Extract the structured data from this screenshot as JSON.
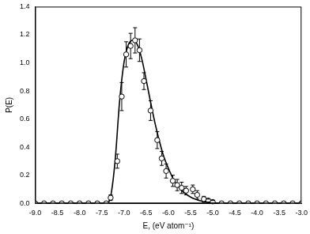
{
  "chart_data": {
    "type": "scatter",
    "x_label": "E, (eV atom⁻¹)",
    "y_label": "P(E)",
    "xlim": [
      -9.0,
      -3.0
    ],
    "xticks": [
      {
        "value": -9,
        "label": "-9.0"
      },
      -8.5,
      {
        "value": -8,
        "label": "-8.0"
      },
      -7.5,
      {
        "value": -7,
        "label": "-7.0"
      },
      -6.5,
      {
        "value": -6,
        "label": "-6.0"
      },
      -5.5,
      {
        "value": -5,
        "label": "-5.0"
      },
      -4.5,
      {
        "value": -4,
        "label": "-4.0"
      },
      -3.5,
      {
        "value": -3,
        "label": "-3.0"
      }
    ],
    "ylim": [
      0,
      1.4
    ],
    "yticks": [
      {
        "value": 0,
        "label": "0.0"
      },
      0.2,
      0.4,
      0.6,
      0.8,
      {
        "value": 1,
        "label": "1.0"
      },
      1.2,
      1.4
    ],
    "grid": false,
    "series": [
      {
        "type": "line",
        "color": "#000000",
        "line_style": "solid",
        "x": [
          -9.0,
          -7.4,
          -7.3,
          -7.2,
          -7.1,
          -7.0,
          -6.9,
          -6.8,
          -6.7,
          -6.6,
          -6.5,
          -6.4,
          -6.3,
          -6.2,
          -6.1,
          -6.0,
          -5.9,
          -5.8,
          -5.7,
          -5.6,
          -5.5,
          -5.4,
          -5.3,
          -5.2,
          -5.0,
          -4.8,
          -3.0
        ],
        "values": [
          0,
          0,
          0.05,
          0.3,
          0.72,
          1.0,
          1.13,
          1.16,
          1.13,
          1.03,
          0.88,
          0.72,
          0.57,
          0.44,
          0.33,
          0.25,
          0.18,
          0.13,
          0.09,
          0.065,
          0.045,
          0.03,
          0.02,
          0.012,
          0.005,
          0,
          0
        ]
      },
      {
        "type": "scatter",
        "color": "#000000",
        "marker": "circle-open",
        "x": [
          -9.0,
          -8.8,
          -8.6,
          -8.4,
          -8.2,
          -8.0,
          -7.8,
          -7.6,
          -7.4,
          -7.3,
          -7.15,
          -7.05,
          -6.95,
          -6.85,
          -6.75,
          -6.65,
          -6.55,
          -6.4,
          -6.25,
          -6.15,
          -6.05,
          -5.9,
          -5.8,
          -5.7,
          -5.6,
          -5.45,
          -5.35,
          -5.2,
          -5.1,
          -5.0,
          -4.8,
          -4.6,
          -4.4,
          -4.2,
          -4.0,
          -3.8,
          -3.6,
          -3.4,
          -3.2,
          -3.0
        ],
        "values": [
          0,
          0,
          0,
          0,
          0,
          0,
          0,
          0,
          0,
          0.04,
          0.3,
          0.76,
          1.06,
          1.12,
          1.16,
          1.09,
          0.87,
          0.66,
          0.45,
          0.32,
          0.23,
          0.16,
          0.13,
          0.11,
          0.09,
          0.1,
          0.06,
          0.03,
          0.02,
          0.01,
          0,
          0,
          0,
          0,
          0,
          0,
          0,
          0,
          0,
          0
        ],
        "errors": [
          0,
          0,
          0,
          0,
          0,
          0,
          0,
          0,
          0,
          0.02,
          0.05,
          0.1,
          0.09,
          0.09,
          0.09,
          0.08,
          0.06,
          0.07,
          0.06,
          0.05,
          0.05,
          0.04,
          0.04,
          0.04,
          0.03,
          0.03,
          0.03,
          0.02,
          0.01,
          0.01,
          0,
          0,
          0,
          0,
          0,
          0,
          0,
          0,
          0,
          0
        ]
      }
    ]
  }
}
